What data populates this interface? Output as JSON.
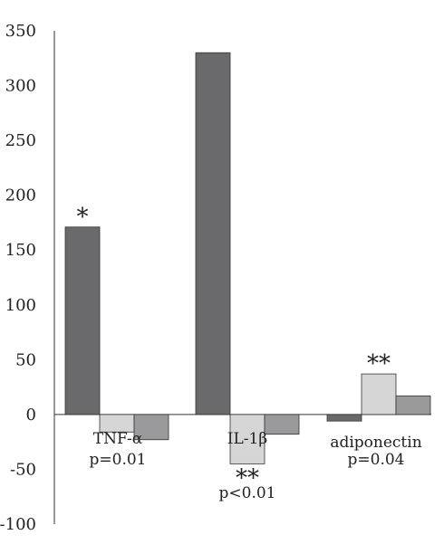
{
  "chart_data": {
    "type": "bar",
    "categories": [
      "TNF-α",
      "IL-1β",
      "adiponectin"
    ],
    "category_pvalues": [
      "p=0.01",
      "p<0.01",
      "p=0.04"
    ],
    "series_colors": [
      "#6a6a6d",
      "#d6d6d6",
      "#9a9a9c"
    ],
    "series": [
      {
        "values": [
          171,
          330,
          -6
        ]
      },
      {
        "values": [
          -16,
          -45,
          37
        ]
      },
      {
        "values": [
          -23,
          -18,
          17
        ]
      }
    ],
    "significance": [
      {
        "category": 0,
        "series": 0,
        "label": "*"
      },
      {
        "category": 1,
        "series": 1,
        "label": "**"
      },
      {
        "category": 2,
        "series": 1,
        "label": "**"
      }
    ],
    "ylim": [
      -100,
      350
    ],
    "yticks": [
      350,
      300,
      250,
      200,
      150,
      100,
      50,
      0,
      -50,
      -100
    ],
    "title": "",
    "xlabel": "",
    "ylabel": "",
    "grid": false
  }
}
